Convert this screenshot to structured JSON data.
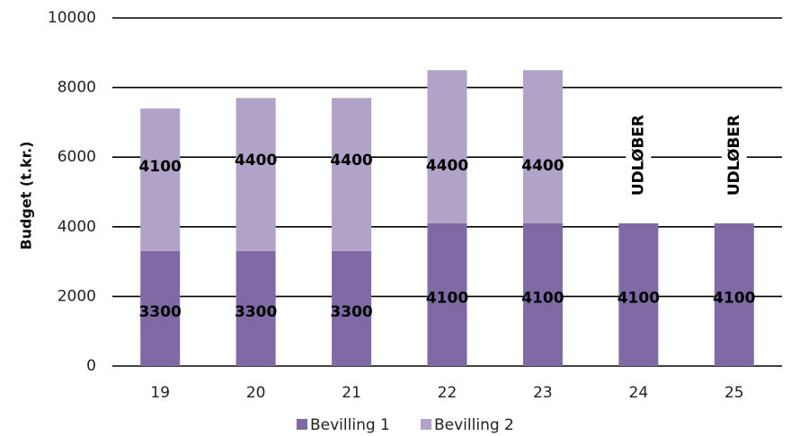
{
  "chart_data": {
    "type": "bar",
    "stacked": true,
    "categories": [
      "19",
      "20",
      "21",
      "22",
      "23",
      "24",
      "25"
    ],
    "series": [
      {
        "name": "Bevilling 1",
        "values": [
          3300,
          3300,
          3300,
          4100,
          4100,
          4100,
          4100
        ],
        "labels": [
          "3300",
          "3300",
          "3300",
          "4100",
          "4100",
          "4100",
          "4100"
        ],
        "color": "#7f6aa5"
      },
      {
        "name": "Bevilling 2",
        "values": [
          4100,
          4400,
          4400,
          4400,
          4400,
          0,
          0
        ],
        "labels": [
          "4100",
          "4400",
          "4400",
          "4400",
          "4400",
          "",
          ""
        ],
        "color": "#b1a3c8"
      }
    ],
    "annotations": [
      {
        "category": "24",
        "text": "UDLØBER"
      },
      {
        "category": "25",
        "text": "UDLØBER"
      }
    ],
    "ylabel": "Budget (t.kr.)",
    "xlabel": "",
    "ylim": [
      0,
      10000
    ],
    "yticks": [
      "0",
      "2000",
      "4000",
      "6000",
      "8000",
      "10000"
    ],
    "grid": true,
    "legend": "bottom"
  }
}
